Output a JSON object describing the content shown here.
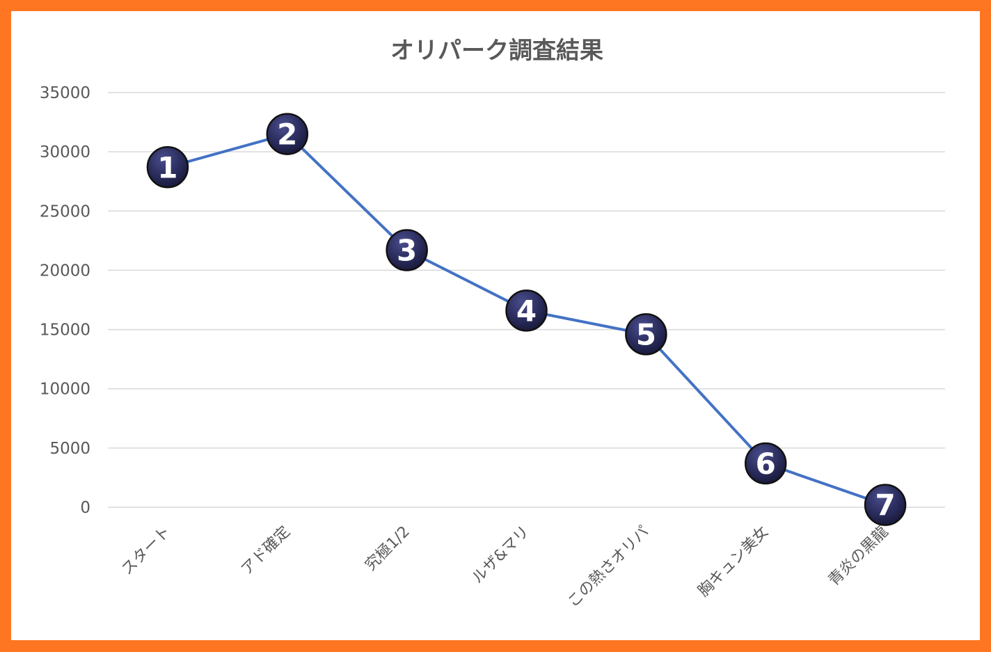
{
  "chart_data": {
    "type": "line",
    "title": "オリパーク調査結果",
    "categories": [
      "スタート",
      "アド確定",
      "究極1/2",
      "ルザ&マリ",
      "この熱さオリパ",
      "胸キュン美女",
      "青炎の黒龍"
    ],
    "values": [
      28700,
      31500,
      21700,
      16600,
      14600,
      3700,
      200
    ],
    "marker_labels": [
      "1",
      "2",
      "3",
      "4",
      "5",
      "6",
      "7"
    ],
    "ylim": [
      0,
      35000
    ],
    "yticks": [
      0,
      5000,
      10000,
      15000,
      20000,
      25000,
      30000,
      35000
    ],
    "grid": true,
    "legend": "none",
    "colors": {
      "line": "#4472c4",
      "marker": "#2b2d5e",
      "frame": "#ff7622",
      "grid": "#d9d9d9",
      "text": "#595959"
    }
  }
}
